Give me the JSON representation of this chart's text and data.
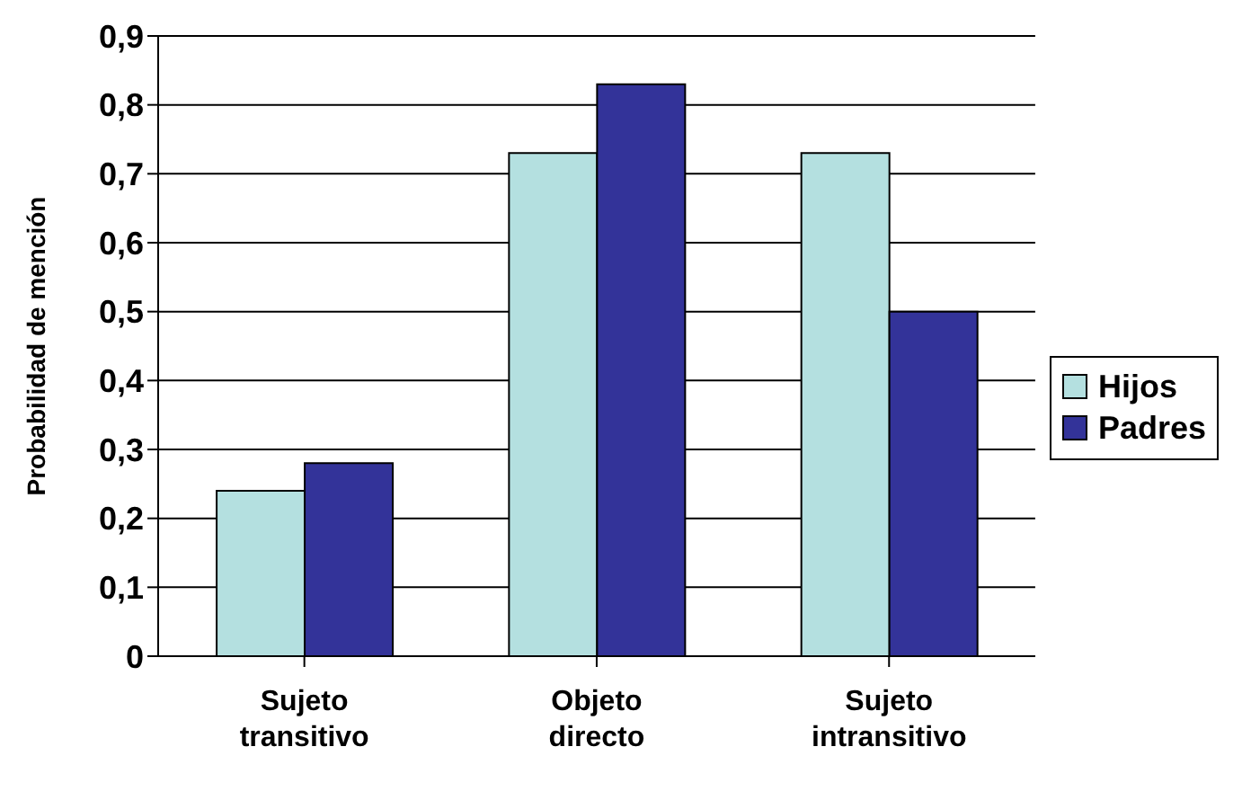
{
  "chart_data": {
    "type": "bar",
    "ylabel": "Probabilidad de mención",
    "categories": [
      "Sujeto transitivo",
      "Objeto directo",
      "Sujeto intransitivo"
    ],
    "series": [
      {
        "name": "Hijos",
        "color": "#b4e0e0",
        "values": [
          0.24,
          0.73,
          0.73
        ]
      },
      {
        "name": "Padres",
        "color": "#333399",
        "values": [
          0.28,
          0.83,
          0.5
        ]
      }
    ],
    "ylim": [
      0,
      0.9
    ],
    "yticks": [
      0,
      {
        "value": 0.1,
        "label": "0,1"
      },
      {
        "value": 0.2,
        "label": "0,2"
      },
      {
        "value": 0.3,
        "label": "0,3"
      },
      {
        "value": 0.4,
        "label": "0,4"
      },
      {
        "value": 0.5,
        "label": "0,5"
      },
      {
        "value": 0.6,
        "label": "0,6"
      },
      {
        "value": 0.7,
        "label": "0,7"
      },
      {
        "value": 0.8,
        "label": "0,8"
      },
      {
        "value": 0.9,
        "label": "0,9"
      }
    ],
    "grid": "y",
    "legend": "right"
  }
}
